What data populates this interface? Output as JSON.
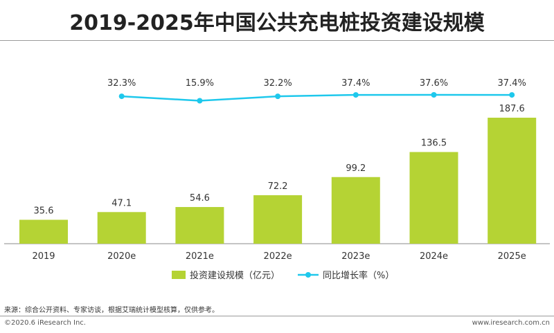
{
  "title": "2019-2025年中国公共充电桩投资建设规模",
  "source_note": "来源：综合公开资料、专家访谈，根据艾瑞统计模型核算，仅供参考。",
  "copyright": "©2020.6 iResearch Inc.",
  "website": "www.iresearch.com.cn",
  "colors": {
    "bar": "#b5d334",
    "line": "#1ec8ec"
  },
  "chart_data": {
    "type": "bar",
    "categories": [
      "2019",
      "2020e",
      "2021e",
      "2022e",
      "2023e",
      "2024e",
      "2025e"
    ],
    "series": [
      {
        "name": "投资建设规模（亿元）",
        "type": "bar",
        "values": [
          35.6,
          47.1,
          54.6,
          72.2,
          99.2,
          136.5,
          187.6
        ],
        "labels": [
          "35.6",
          "47.1",
          "54.6",
          "72.2",
          "99.2",
          "136.5",
          "187.6"
        ]
      },
      {
        "name": "同比增长率（%）",
        "type": "line",
        "values": [
          null,
          32.3,
          15.9,
          32.2,
          37.4,
          37.6,
          37.4
        ],
        "labels": [
          "",
          "32.3%",
          "15.9%",
          "32.2%",
          "37.4%",
          "37.6%",
          "37.4%"
        ]
      }
    ],
    "legend_position": "bottom-center",
    "grid": false
  }
}
